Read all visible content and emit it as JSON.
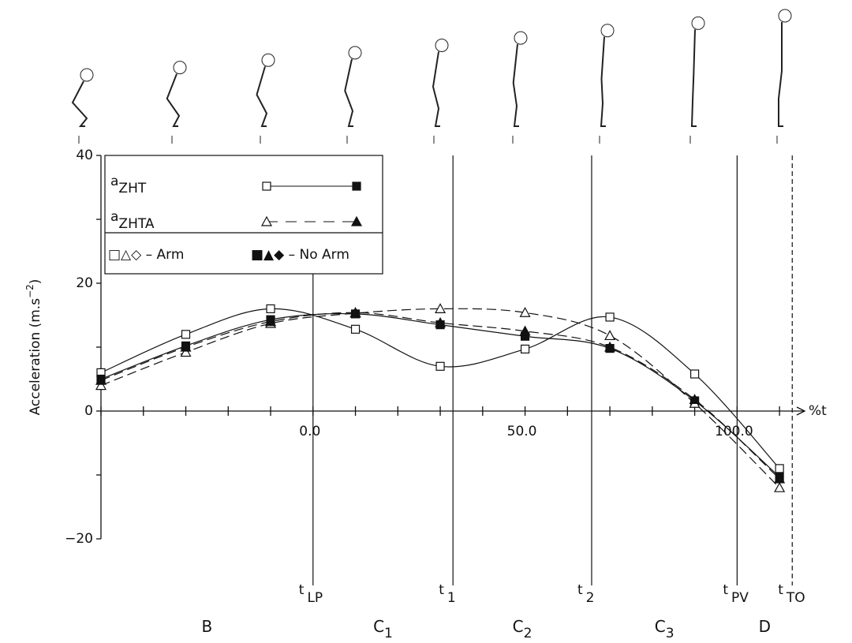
{
  "chart_data": {
    "type": "line",
    "y_label": "Acceleration (m.s",
    "y_label_sup": "−2",
    "y_label_end": ")",
    "x_label": "%t",
    "xlim": [
      -50,
      115
    ],
    "xticks": [
      {
        "value": -50,
        "label": null
      },
      {
        "value": -40,
        "label": null
      },
      {
        "value": -30,
        "label": null
      },
      {
        "value": -20,
        "label": null
      },
      {
        "value": -10,
        "label": null
      },
      {
        "value": 0,
        "label": "0.0"
      },
      {
        "value": 10,
        "label": null
      },
      {
        "value": 20,
        "label": null
      },
      {
        "value": 30,
        "label": null
      },
      {
        "value": 40,
        "label": null
      },
      {
        "value": 50,
        "label": "50.0"
      },
      {
        "value": 60,
        "label": null
      },
      {
        "value": 70,
        "label": null
      },
      {
        "value": 80,
        "label": null
      },
      {
        "value": 90,
        "label": null
      },
      {
        "value": 100,
        "label": "100.0"
      },
      {
        "value": 110,
        "label": null
      }
    ],
    "ylim": [
      -20,
      40
    ],
    "yticks": [
      {
        "value": -20,
        "label": "−20"
      },
      {
        "value": -10,
        "label": null
      },
      0,
      {
        "value": 10,
        "label": null
      },
      20,
      {
        "value": 30,
        "label": null
      },
      40
    ],
    "x": [
      -50,
      -30,
      -10,
      10,
      30,
      50,
      70,
      90,
      110
    ],
    "series": [
      {
        "marker": "square",
        "filled": false,
        "dashed": false,
        "color": "#111",
        "values": [
          6,
          12,
          16,
          12.8,
          7,
          9.7,
          14.7,
          5.8,
          -9
        ]
      },
      {
        "marker": "square",
        "filled": true,
        "dashed": false,
        "color": "#111",
        "values": [
          5,
          10.2,
          14.3,
          15.2,
          13.5,
          11.7,
          9.8,
          1.6,
          -10.3
        ]
      },
      {
        "marker": "triangle",
        "filled": false,
        "dashed": true,
        "color": "#111",
        "values": [
          4,
          9.2,
          13.7,
          15.3,
          16,
          15.4,
          11.8,
          1.2,
          -12
        ]
      },
      {
        "marker": "triangle",
        "filled": true,
        "dashed": true,
        "color": "#111",
        "values": [
          4.8,
          10,
          14,
          15.4,
          13.8,
          12.5,
          10,
          1.8,
          -10.6
        ]
      }
    ],
    "legend": [
      {
        "text": "a",
        "sub": "ZHT",
        "marker": "square",
        "dashed": false
      },
      {
        "text": "a",
        "sub": "ZHTA",
        "marker": "triangle",
        "dashed": true
      }
    ],
    "legend_note": [
      "□△◇ – Arm",
      "■▲◆ – No Arm"
    ],
    "events": [
      {
        "x": 0,
        "label": "t",
        "sub": "LP",
        "dashed": false
      },
      {
        "x": 33,
        "label": "t",
        "sub": "1",
        "dashed": false
      },
      {
        "x": 65.7,
        "label": "t",
        "sub": "2",
        "dashed": false
      },
      {
        "x": 100,
        "label": "t",
        "sub": "PV",
        "dashed": false
      },
      {
        "x": 113,
        "label": "t",
        "sub": "TO",
        "dashed": true
      }
    ],
    "phases": [
      {
        "label": "B",
        "sub": null
      },
      {
        "label": "C",
        "sub": "1"
      },
      {
        "label": "C",
        "sub": "2"
      },
      {
        "label": "C",
        "sub": "3"
      },
      {
        "label": "D",
        "sub": null
      }
    ]
  }
}
